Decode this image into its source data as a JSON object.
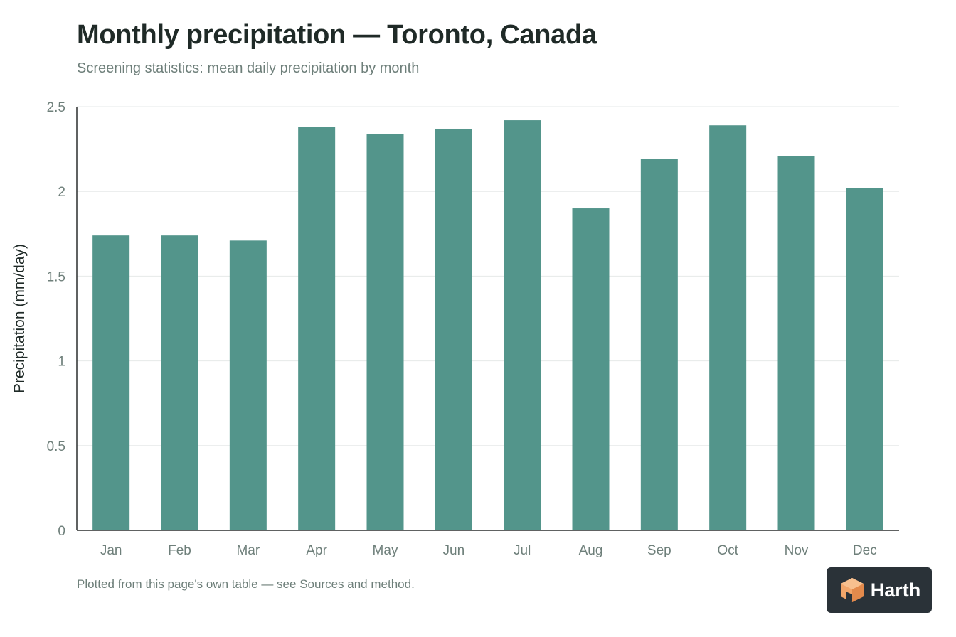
{
  "header": {
    "title": "Monthly precipitation — Toronto, Canada",
    "subtitle": "Screening statistics: mean daily precipitation by month"
  },
  "footer": {
    "note": "Plotted from this page's own table — see Sources and method.",
    "logo_text": "Harth"
  },
  "colors": {
    "bar": "#53958b",
    "grid": "#e6e9e8",
    "axis": "#2b2f2e",
    "tick_text": "#6e7f7a",
    "label_text": "#1f2a27",
    "logo_bg": "#2a3238",
    "logo_mark": "#f2a66a"
  },
  "chart_data": {
    "type": "bar",
    "title": "Monthly precipitation — Toronto, Canada",
    "subtitle": "Screening statistics: mean daily precipitation by month",
    "xlabel": "",
    "ylabel": "Precipitation (mm/day)",
    "categories": [
      "Jan",
      "Feb",
      "Mar",
      "Apr",
      "May",
      "Jun",
      "Jul",
      "Aug",
      "Sep",
      "Oct",
      "Nov",
      "Dec"
    ],
    "values": [
      1.74,
      1.74,
      1.71,
      2.38,
      2.34,
      2.37,
      2.42,
      1.9,
      2.19,
      2.39,
      2.21,
      2.02
    ],
    "ylim": [
      0,
      2.5
    ],
    "yticks": [
      0,
      0.5,
      1,
      1.5,
      2,
      2.5
    ],
    "ytick_labels": [
      "0",
      "0.5",
      "1",
      "1.5",
      "2",
      "2.5"
    ],
    "grid": true,
    "legend": "none"
  }
}
